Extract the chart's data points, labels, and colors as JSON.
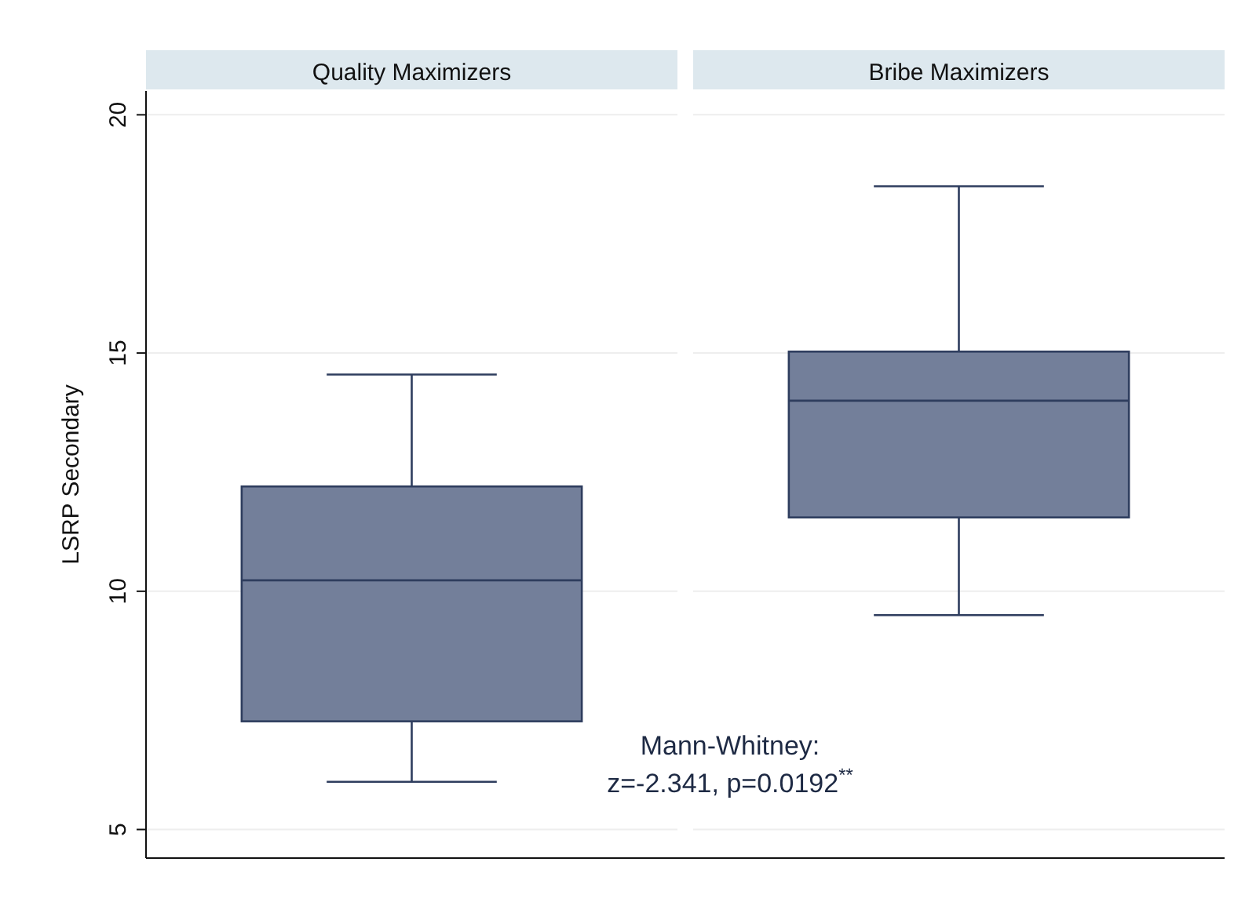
{
  "chart_data": {
    "type": "box",
    "categories": [
      "Quality Maximizers",
      "Bribe Maximizers"
    ],
    "boxes": [
      {
        "low": 6.0,
        "q1": 7.27,
        "median": 10.23,
        "q3": 12.2,
        "high": 14.55
      },
      {
        "low": 9.5,
        "q1": 11.55,
        "median": 14.0,
        "q3": 15.03,
        "high": 18.5
      }
    ],
    "color": "#737f9a",
    "ylabel": "LSRP Secondary",
    "ylim": [
      4.4,
      20.5
    ],
    "yticks": [
      5,
      10,
      15,
      20
    ],
    "grid": "y",
    "annotations": [
      "Mann-Whitney:\nz=-2.341, p=0.0192$^{**}$"
    ]
  }
}
